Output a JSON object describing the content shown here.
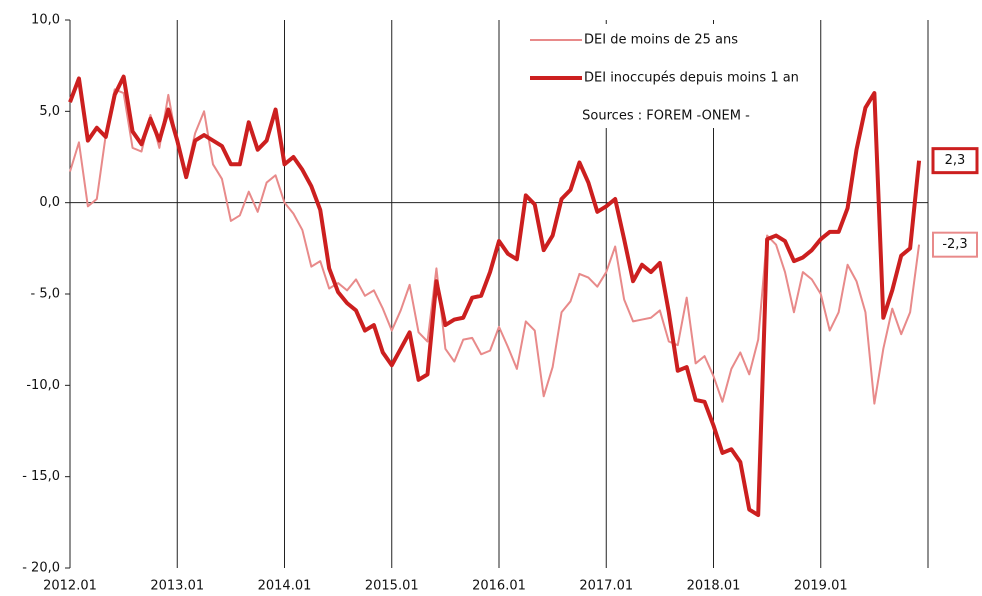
{
  "chart_data": {
    "type": "line",
    "categories": [
      "2012.01",
      null,
      null,
      null,
      null,
      null,
      null,
      null,
      null,
      null,
      null,
      null,
      "2013.01",
      null,
      null,
      null,
      null,
      null,
      null,
      null,
      null,
      null,
      null,
      null,
      "2014.01",
      null,
      null,
      null,
      null,
      null,
      null,
      null,
      null,
      null,
      null,
      null,
      "2015.01",
      null,
      null,
      null,
      null,
      null,
      null,
      null,
      null,
      null,
      null,
      null,
      "2016.01",
      null,
      null,
      null,
      null,
      null,
      null,
      null,
      null,
      null,
      null,
      null,
      "2017.01",
      null,
      null,
      null,
      null,
      null,
      null,
      null,
      null,
      null,
      null,
      null,
      "2018.01",
      null,
      null,
      null,
      null,
      null,
      null,
      null,
      null,
      null,
      null,
      null,
      "2019.01",
      null,
      null,
      null,
      null,
      null,
      null,
      null,
      null,
      null,
      null,
      null
    ],
    "series": [
      {
        "name": "DEI de moins de 25 ans",
        "color": "#e88a8a",
        "width": 2,
        "last_label": "-2,3",
        "values": [
          1.7,
          3.3,
          -0.2,
          0.2,
          3.7,
          6.2,
          6.0,
          3.0,
          2.8,
          4.8,
          3.0,
          5.9,
          3.2,
          1.6,
          3.8,
          5.0,
          2.1,
          1.3,
          -1.0,
          -0.7,
          0.6,
          -0.5,
          1.1,
          1.5,
          0.0,
          -0.6,
          -1.5,
          -3.5,
          -3.2,
          -4.7,
          -4.4,
          -4.8,
          -4.2,
          -5.1,
          -4.8,
          -5.8,
          -7.0,
          -5.9,
          -4.5,
          -7.1,
          -7.6,
          -3.6,
          -8.0,
          -8.7,
          -7.5,
          -7.4,
          -8.3,
          -8.1,
          -6.8,
          -7.9,
          -9.1,
          -6.5,
          -7.0,
          -10.6,
          -9.0,
          -6.0,
          -5.4,
          -3.9,
          -4.1,
          -4.6,
          -3.8,
          -2.4,
          -5.3,
          -6.5,
          -6.4,
          -6.3,
          -5.9,
          -7.6,
          -7.8,
          -5.2,
          -8.8,
          -8.4,
          -9.5,
          -10.9,
          -9.1,
          -8.2,
          -9.4,
          -7.5,
          -1.8,
          -2.3,
          -3.8,
          -6.0,
          -3.8,
          -4.2,
          -5.0,
          -7.0,
          -6.0,
          -3.4,
          -4.3,
          -6.0,
          -11.0,
          -8.0,
          -5.8,
          -7.2,
          -6.0,
          -2.3
        ]
      },
      {
        "name": "DEI inoccupés depuis moins 1 an",
        "color": "#cc1f1f",
        "width": 4,
        "last_label": "2,3",
        "values": [
          5.5,
          6.8,
          3.4,
          4.1,
          3.6,
          5.9,
          6.9,
          3.9,
          3.2,
          4.6,
          3.4,
          5.1,
          3.4,
          1.4,
          3.4,
          3.7,
          3.4,
          3.1,
          2.1,
          2.1,
          4.4,
          2.9,
          3.4,
          5.1,
          2.1,
          2.5,
          1.8,
          0.9,
          -0.4,
          -3.6,
          -4.9,
          -5.5,
          -5.9,
          -7.0,
          -6.7,
          -8.2,
          -8.9,
          -8.0,
          -7.1,
          -9.7,
          -9.4,
          -4.3,
          -6.7,
          -6.4,
          -6.3,
          -5.2,
          -5.1,
          -3.8,
          -2.1,
          -2.8,
          -3.1,
          0.4,
          -0.1,
          -2.6,
          -1.8,
          0.2,
          0.7,
          2.2,
          1.1,
          -0.5,
          -0.2,
          0.2,
          -2.0,
          -4.3,
          -3.4,
          -3.8,
          -3.3,
          -6.0,
          -9.2,
          -9.0,
          -10.8,
          -10.9,
          -12.2,
          -13.7,
          -13.5,
          -14.2,
          -16.8,
          -17.1,
          -2.0,
          -1.8,
          -2.1,
          -3.2,
          -3.0,
          -2.6,
          -2.0,
          -1.6,
          -1.6,
          -0.3,
          2.9,
          5.2,
          6.0,
          -6.3,
          -4.8,
          -2.9,
          -2.5,
          2.3
        ]
      }
    ],
    "ylim": [
      -20,
      10
    ],
    "yticks": [
      {
        "value": 10,
        "label": "10,0"
      },
      {
        "value": 5,
        "label": "5,0"
      },
      {
        "value": 0,
        "label": "0,0"
      },
      {
        "value": -5,
        "label": "- 5,0"
      },
      {
        "value": -10,
        "label": "-10,0"
      },
      {
        "value": -15,
        "label": "- 15,0"
      },
      {
        "value": -20,
        "label": "- 20,0"
      }
    ],
    "annotation": "Sources : FOREM -ONEM -"
  }
}
